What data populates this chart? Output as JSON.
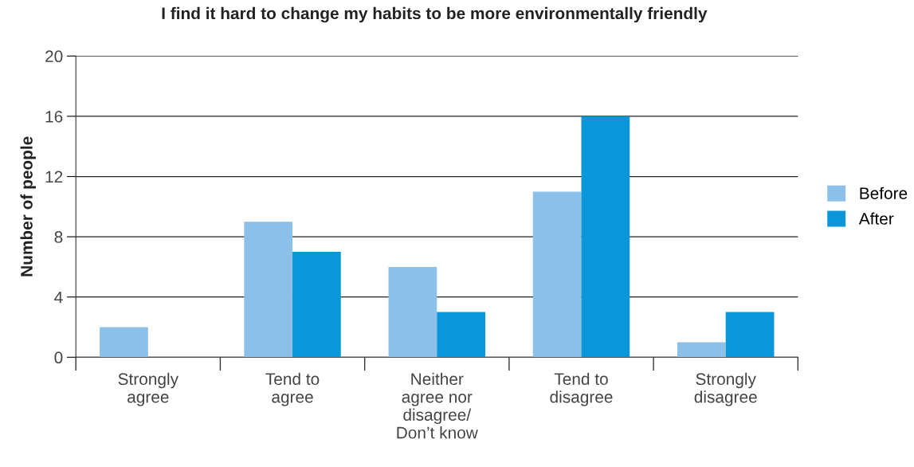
{
  "chart_data": {
    "type": "bar",
    "title": "I find it hard to change my habits to be more environmentally friendly",
    "ylabel": "Number of people",
    "categories": [
      "Strongly\nagree",
      "Tend to\nagree",
      "Neither\nagree nor\ndisagree/\nDon’t know",
      "Tend to\ndisagree",
      "Strongly\ndisagree"
    ],
    "series": [
      {
        "name": "Before",
        "color": "#8dc0e8",
        "values": [
          2,
          9,
          6,
          11,
          1
        ]
      },
      {
        "name": "After",
        "color": "#0a96d8",
        "values": [
          0,
          7,
          3,
          16,
          3
        ]
      }
    ],
    "ylim": [
      0,
      20
    ],
    "yticks": [
      0,
      4,
      8,
      12,
      16,
      20
    ],
    "grid": "y",
    "legend": "right"
  }
}
